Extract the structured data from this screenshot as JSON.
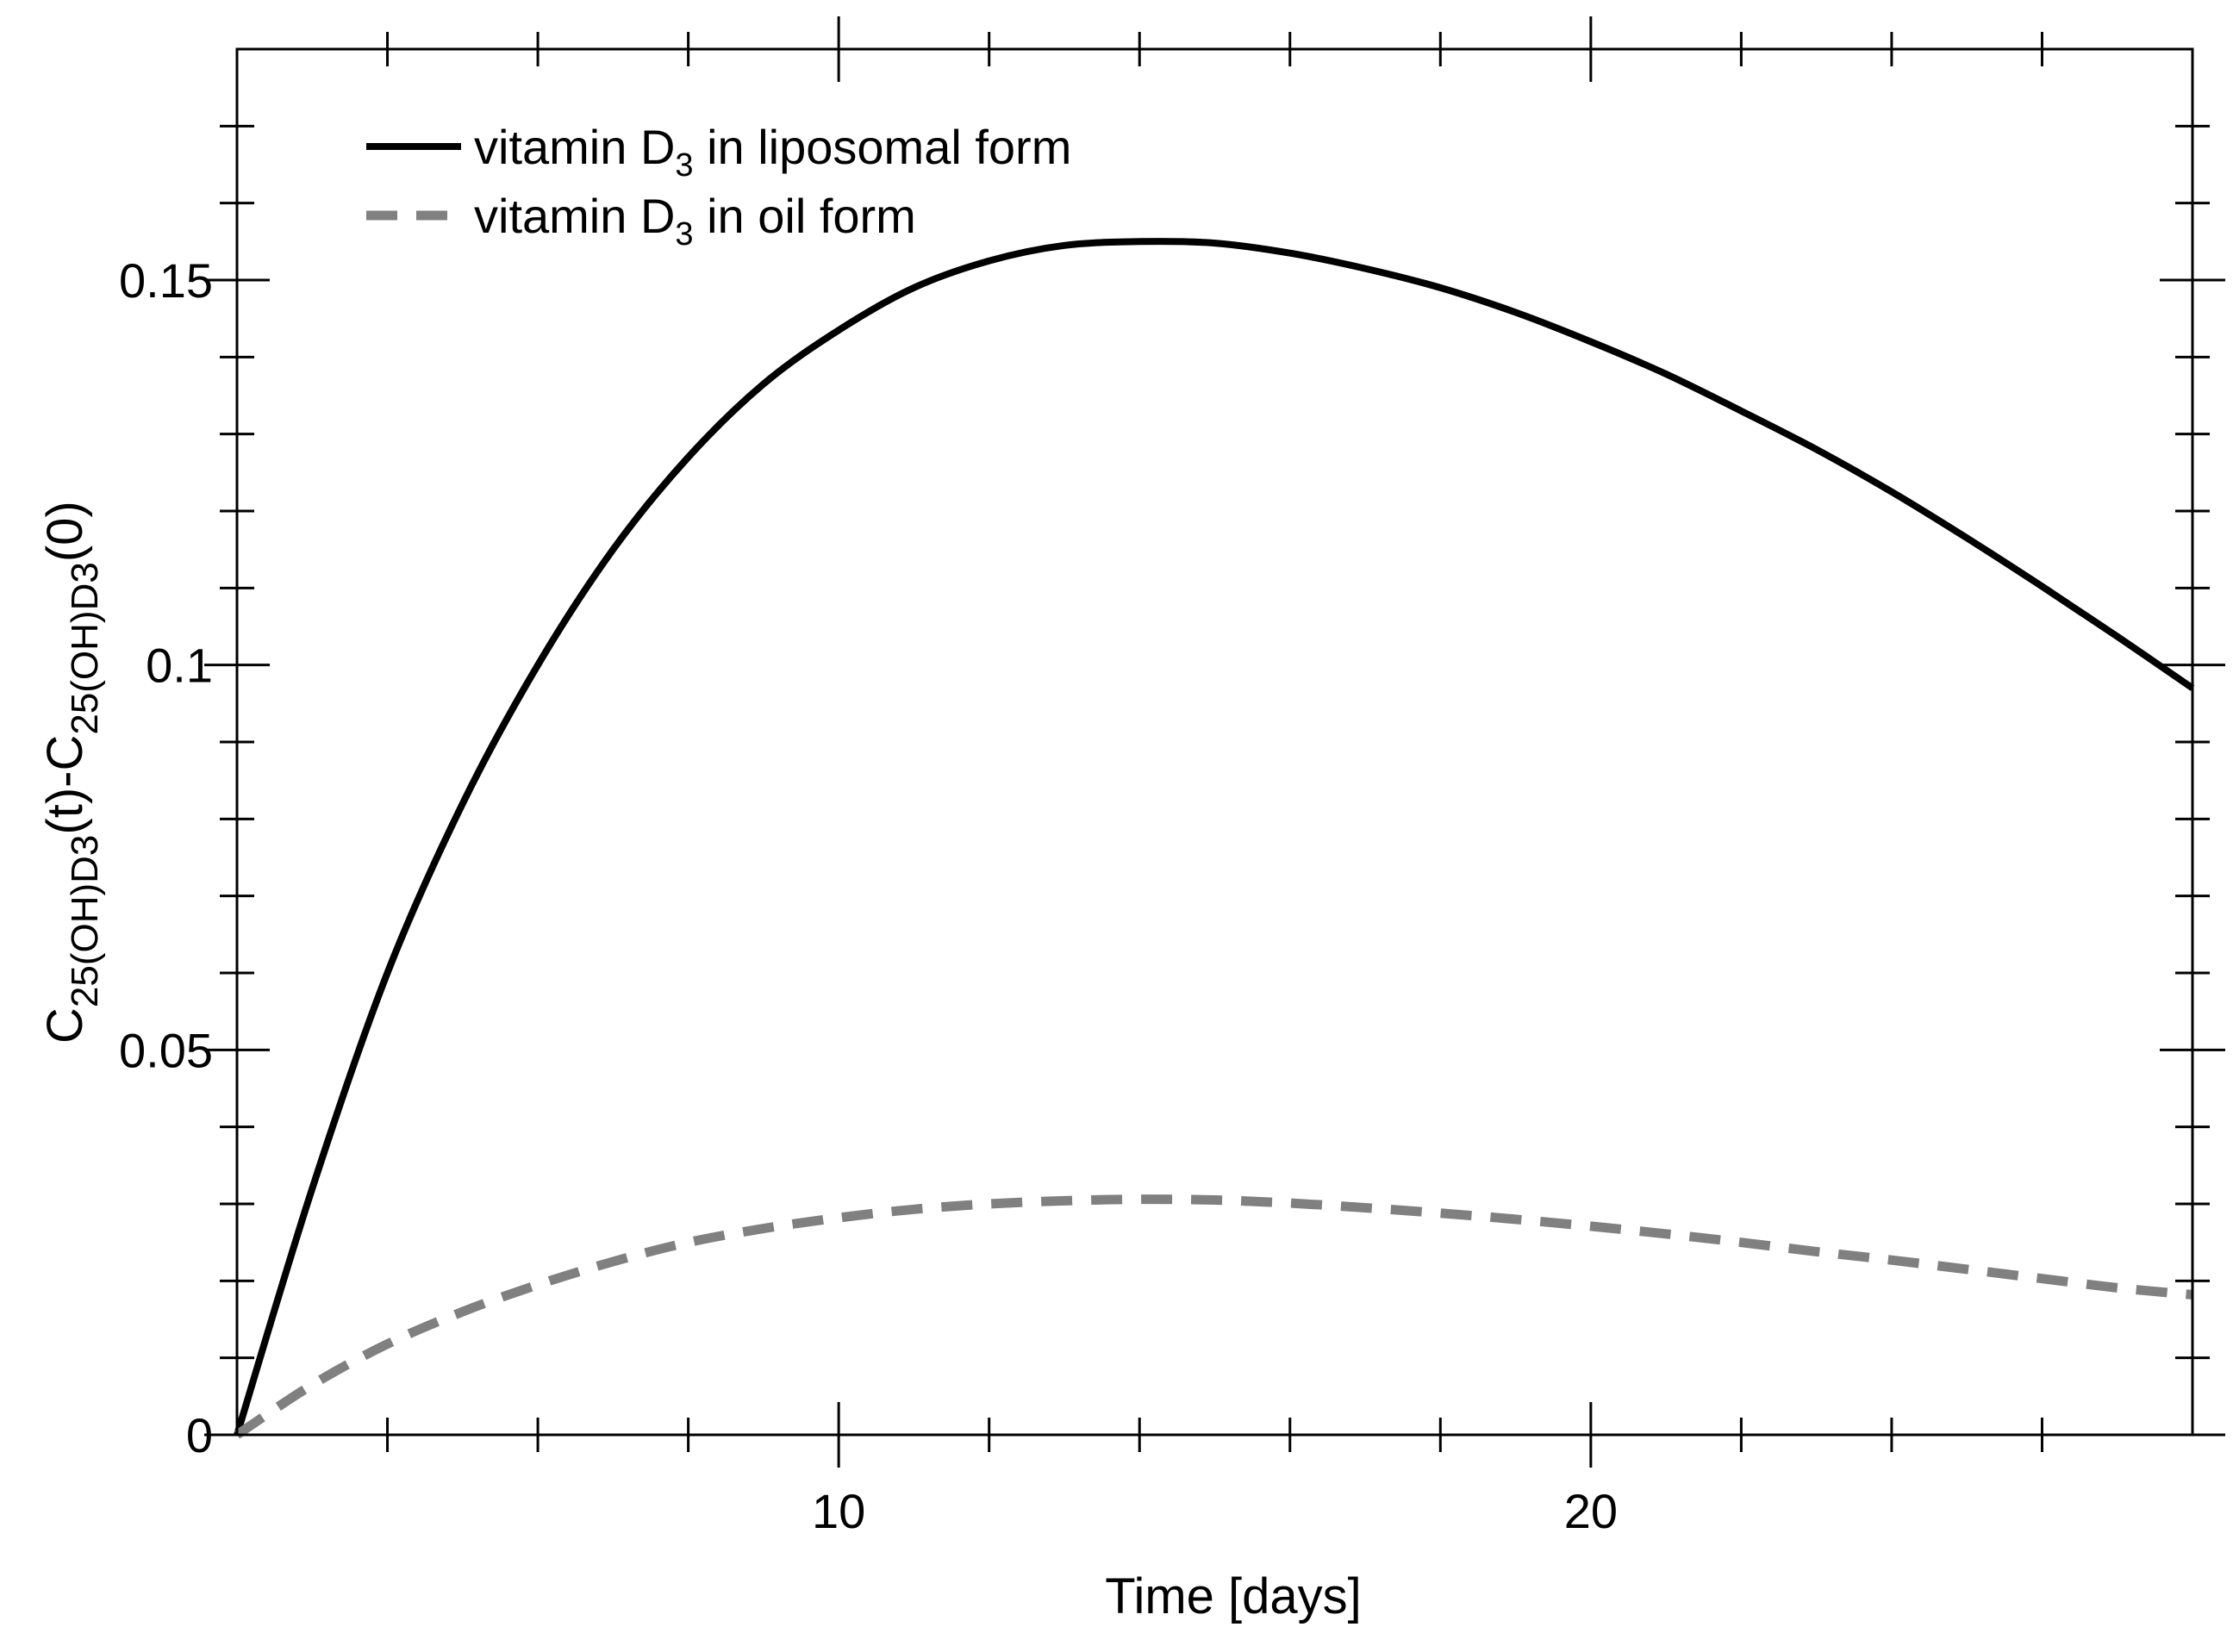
{
  "chart_data": {
    "type": "line",
    "title": "",
    "xlabel": "Time [days]",
    "ylabel": {
      "parts": [
        {
          "text": "C",
          "sub": false
        },
        {
          "text": "25(OH)D3",
          "sub": true
        },
        {
          "text": "(t)-C",
          "sub": false
        },
        {
          "text": "25(OH)D3",
          "sub": true
        },
        {
          "text": "(0)",
          "sub": false
        }
      ]
    },
    "xlim": [
      2,
      28
    ],
    "ylim": [
      0,
      0.18
    ],
    "x_ticks": [
      10,
      20
    ],
    "x_tick_labels": [
      "10",
      "20"
    ],
    "x_minor_step": 2,
    "y_ticks": [
      0,
      0.05,
      0.1,
      0.15
    ],
    "y_tick_labels": [
      "0",
      "0.05",
      "0.1",
      "0.15"
    ],
    "y_minor_step": 0.01,
    "legend_position": "top-left",
    "series": [
      {
        "name": "vitamin D3 in liposomal form",
        "legend": {
          "prefix": "vitamin D",
          "sub": "3",
          "suffix": " in liposomal form"
        },
        "color": "#000000",
        "style": "solid",
        "x": [
          2,
          3,
          4,
          5,
          6,
          7,
          8,
          9,
          10,
          11,
          12,
          13,
          14,
          15,
          16,
          17,
          18,
          19,
          20,
          21,
          22,
          23,
          24,
          25,
          26,
          27,
          28
        ],
        "y": [
          0.0,
          0.032,
          0.06,
          0.082,
          0.1,
          0.115,
          0.127,
          0.1365,
          0.1435,
          0.149,
          0.1525,
          0.1545,
          0.155,
          0.1548,
          0.1535,
          0.1515,
          0.149,
          0.1458,
          0.142,
          0.1378,
          0.133,
          0.128,
          0.1225,
          0.1165,
          0.1102,
          0.1037,
          0.097
        ]
      },
      {
        "name": "vitamin D3 in oil form",
        "legend": {
          "prefix": "vitamin D",
          "sub": "3",
          "suffix": " in oil form"
        },
        "color": "#808080",
        "style": "dashed",
        "x": [
          2,
          3,
          4,
          5,
          6,
          7,
          8,
          9,
          10,
          11,
          12,
          13,
          14,
          15,
          16,
          17,
          18,
          19,
          20,
          21,
          22,
          23,
          24,
          25,
          26,
          27,
          28
        ],
        "y": [
          0.0,
          0.0065,
          0.0118,
          0.016,
          0.0195,
          0.0225,
          0.025,
          0.0268,
          0.0282,
          0.0293,
          0.03,
          0.0304,
          0.0306,
          0.0305,
          0.0301,
          0.0295,
          0.0288,
          0.028,
          0.0271,
          0.0261,
          0.025,
          0.0238,
          0.0227,
          0.0215,
          0.0203,
          0.0191,
          0.0182
        ]
      }
    ]
  }
}
